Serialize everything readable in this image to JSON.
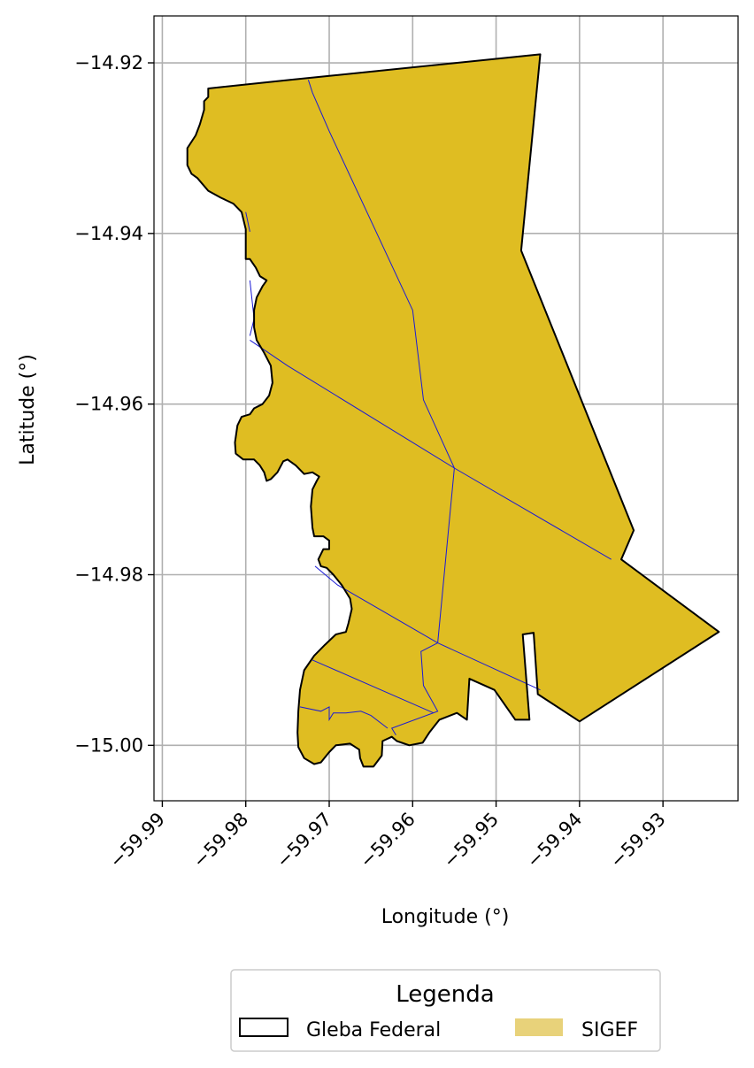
{
  "chart_data": {
    "type": "map",
    "xlabel": "Longitude (°)",
    "ylabel": "Latitude (°)",
    "xlim": [
      -59.991,
      -59.921
    ],
    "ylim": [
      -15.0065,
      -14.9145
    ],
    "grid": true,
    "x_ticks": [
      -59.99,
      -59.98,
      -59.97,
      -59.96,
      -59.95,
      -59.94,
      -59.93
    ],
    "x_tick_labels": [
      "−59.99",
      "−59.98",
      "−59.97",
      "−59.96",
      "−59.95",
      "−59.94",
      "−59.93"
    ],
    "y_ticks": [
      -14.92,
      -14.94,
      -14.96,
      -14.98,
      -15.0
    ],
    "y_tick_labels": [
      "−14.92",
      "−14.94",
      "−14.96",
      "−14.98",
      "−15.00"
    ],
    "legend": {
      "title": "Legenda",
      "placement": "bottom-center",
      "entries": [
        {
          "label": "Gleba Federal",
          "style": "outline",
          "color": "#000000"
        },
        {
          "label": "SIGEF",
          "style": "fill",
          "color": "#e8d27a"
        }
      ]
    },
    "colors": {
      "sigef_fill": "#dfbd22",
      "gleba_outline": "#000000",
      "parcel_lines": "#1a1ad6",
      "grid": "#b0b0b0"
    },
    "gleba_federal_polygon": [
      [
        -59.9747,
        -14.922
      ],
      [
        -59.9447,
        -14.919
      ],
      [
        -59.947,
        -14.942
      ],
      [
        -59.9335,
        -14.9748
      ],
      [
        -59.935,
        -14.9782
      ],
      [
        -59.9233,
        -14.9867
      ],
      [
        -59.94,
        -14.9972
      ],
      [
        -59.945,
        -14.994
      ],
      [
        -59.9455,
        -14.9868
      ],
      [
        -59.9468,
        -14.987
      ],
      [
        -59.946,
        -14.997
      ],
      [
        -59.9477,
        -14.997
      ],
      [
        -59.9502,
        -14.9935
      ],
      [
        -59.9532,
        -14.9922
      ],
      [
        -59.9535,
        -14.997
      ],
      [
        -59.9547,
        -14.9962
      ],
      [
        -59.9568,
        -14.997
      ],
      [
        -59.958,
        -14.9985
      ],
      [
        -59.9588,
        -14.9997
      ],
      [
        -59.9604,
        -15.0
      ],
      [
        -59.9619,
        -14.9995
      ],
      [
        -59.9625,
        -14.999
      ],
      [
        -59.9636,
        -14.9995
      ],
      [
        -59.9637,
        -15.0012
      ],
      [
        -59.9647,
        -15.0025
      ],
      [
        -59.9659,
        -15.0025
      ],
      [
        -59.9663,
        -15.0015
      ],
      [
        -59.9664,
        -15.0005
      ],
      [
        -59.9675,
        -14.9998
      ],
      [
        -59.9692,
        -15.0
      ],
      [
        -59.97,
        -15.0008
      ],
      [
        -59.971,
        -15.002
      ],
      [
        -59.9718,
        -15.0022
      ],
      [
        -59.973,
        -15.0015
      ],
      [
        -59.9737,
        -15.0002
      ],
      [
        -59.9738,
        -14.9985
      ],
      [
        -59.9737,
        -14.996
      ],
      [
        -59.9735,
        -14.9935
      ],
      [
        -59.973,
        -14.9912
      ],
      [
        -59.9718,
        -14.9895
      ],
      [
        -59.9705,
        -14.9882
      ],
      [
        -59.9692,
        -14.987
      ],
      [
        -59.968,
        -14.9867
      ],
      [
        -59.9677,
        -14.9857
      ],
      [
        -59.9673,
        -14.984
      ],
      [
        -59.9675,
        -14.9828
      ],
      [
        -59.9685,
        -14.9812
      ],
      [
        -59.9695,
        -14.98
      ],
      [
        -59.9703,
        -14.9792
      ],
      [
        -59.971,
        -14.979
      ],
      [
        -59.9713,
        -14.9782
      ],
      [
        -59.9707,
        -14.977
      ],
      [
        -59.97,
        -14.977
      ],
      [
        -59.97,
        -14.976
      ],
      [
        -59.9707,
        -14.9755
      ],
      [
        -59.9718,
        -14.9755
      ],
      [
        -59.972,
        -14.9745
      ],
      [
        -59.9722,
        -14.972
      ],
      [
        -59.972,
        -14.97
      ],
      [
        -59.9715,
        -14.969
      ],
      [
        -59.9712,
        -14.9685
      ],
      [
        -59.972,
        -14.968
      ],
      [
        -59.973,
        -14.9682
      ],
      [
        -59.974,
        -14.9672
      ],
      [
        -59.975,
        -14.9665
      ],
      [
        -59.9755,
        -14.9667
      ],
      [
        -59.9762,
        -14.968
      ],
      [
        -59.977,
        -14.9688
      ],
      [
        -59.9775,
        -14.969
      ],
      [
        -59.9778,
        -14.968
      ],
      [
        -59.9783,
        -14.9672
      ],
      [
        -59.979,
        -14.9665
      ],
      [
        -59.9803,
        -14.9665
      ],
      [
        -59.9812,
        -14.9658
      ],
      [
        -59.9813,
        -14.9645
      ],
      [
        -59.981,
        -14.9625
      ],
      [
        -59.9805,
        -14.9615
      ],
      [
        -59.9795,
        -14.9612
      ],
      [
        -59.979,
        -14.9605
      ],
      [
        -59.978,
        -14.96
      ],
      [
        -59.9772,
        -14.959
      ],
      [
        -59.9768,
        -14.9575
      ],
      [
        -59.977,
        -14.9555
      ],
      [
        -59.9778,
        -14.954
      ],
      [
        -59.9787,
        -14.9525
      ],
      [
        -59.979,
        -14.951
      ],
      [
        -59.979,
        -14.949
      ],
      [
        -59.9787,
        -14.9475
      ],
      [
        -59.978,
        -14.9462
      ],
      [
        -59.9775,
        -14.9455
      ],
      [
        -59.9783,
        -14.945
      ],
      [
        -59.9788,
        -14.944
      ],
      [
        -59.9795,
        -14.943
      ],
      [
        -59.98,
        -14.943
      ],
      [
        -59.98,
        -14.942
      ],
      [
        -59.98,
        -14.9395
      ],
      [
        -59.9805,
        -14.9375
      ],
      [
        -59.9815,
        -14.9365
      ],
      [
        -59.983,
        -14.9358
      ],
      [
        -59.9845,
        -14.935
      ],
      [
        -59.9858,
        -14.9335
      ],
      [
        -59.9865,
        -14.933
      ],
      [
        -59.987,
        -14.932
      ],
      [
        -59.987,
        -14.93
      ],
      [
        -59.986,
        -14.9285
      ],
      [
        -59.9855,
        -14.9272
      ],
      [
        -59.985,
        -14.9255
      ],
      [
        -59.985,
        -14.9245
      ],
      [
        -59.9845,
        -14.924
      ],
      [
        -59.9845,
        -14.923
      ]
    ],
    "parcel_lines": [
      [
        [
          -59.9725,
          -14.922
        ],
        [
          -59.972,
          -14.9235
        ],
        [
          -59.97,
          -14.928
        ],
        [
          -59.96,
          -14.949
        ],
        [
          -59.9587,
          -14.9595
        ],
        [
          -59.955,
          -14.9675
        ],
        [
          -59.957,
          -14.988
        ]
      ],
      [
        [
          -59.9795,
          -14.9525
        ],
        [
          -59.975,
          -14.9555
        ],
        [
          -59.955,
          -14.9675
        ],
        [
          -59.9362,
          -14.9782
        ]
      ],
      [
        [
          -59.9717,
          -14.979
        ],
        [
          -59.969,
          -14.9812
        ],
        [
          -59.957,
          -14.988
        ],
        [
          -59.9447,
          -14.9935
        ]
      ],
      [
        [
          -59.957,
          -14.988
        ],
        [
          -59.959,
          -14.989
        ],
        [
          -59.9587,
          -14.993
        ],
        [
          -59.957,
          -14.996
        ],
        [
          -59.9625,
          -14.998
        ],
        [
          -59.962,
          -14.9988
        ]
      ],
      [
        [
          -59.972,
          -14.99
        ],
        [
          -59.9575,
          -14.9962
        ]
      ],
      [
        [
          -59.9735,
          -14.9955
        ],
        [
          -59.971,
          -14.996
        ],
        [
          -59.97,
          -14.9955
        ],
        [
          -59.97,
          -14.997
        ],
        [
          -59.9695,
          -14.9962
        ],
        [
          -59.968,
          -14.9962
        ],
        [
          -59.9662,
          -14.996
        ],
        [
          -59.965,
          -14.9965
        ],
        [
          -59.963,
          -14.998
        ]
      ],
      [
        [
          -59.9795,
          -14.952
        ],
        [
          -59.979,
          -14.95
        ],
        [
          -59.9795,
          -14.9455
        ]
      ],
      [
        [
          -59.98,
          -14.9375
        ],
        [
          -59.9795,
          -14.9398
        ]
      ]
    ]
  }
}
